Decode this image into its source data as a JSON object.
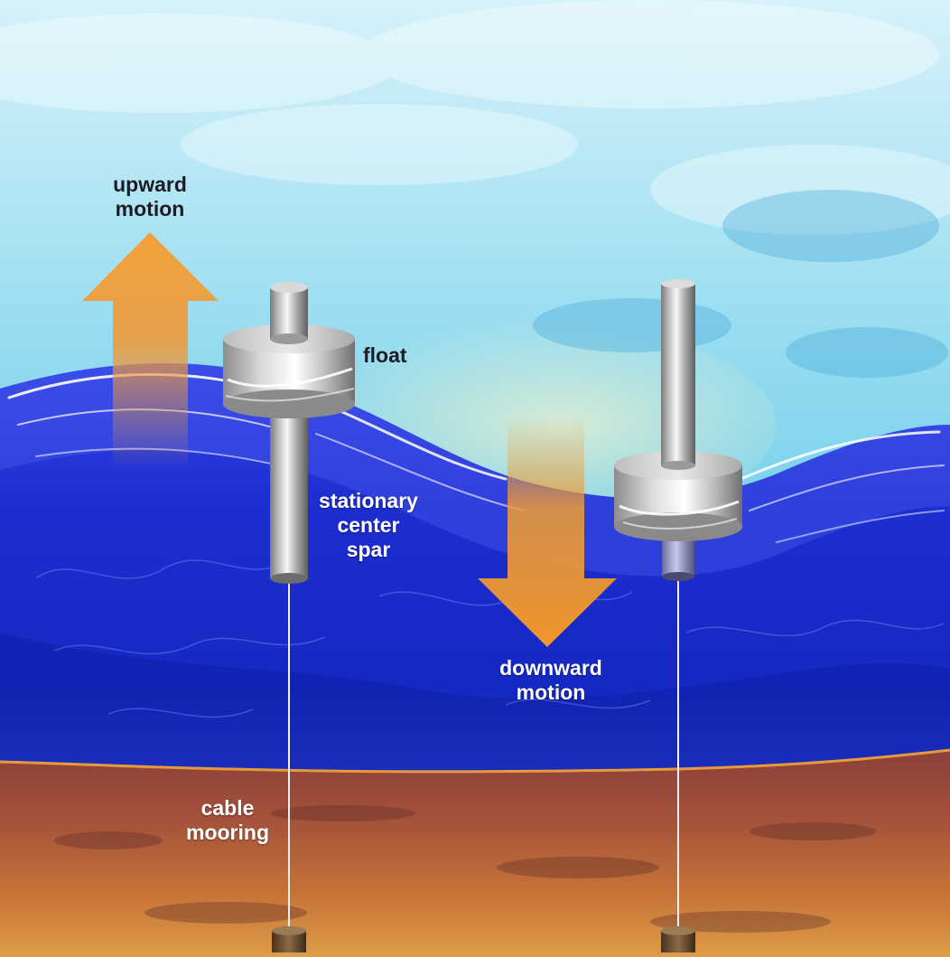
{
  "labels": {
    "upward_motion": {
      "line1": "upward",
      "line2": "motion"
    },
    "float": "float",
    "spar": {
      "line1": "stationary",
      "line2": "center",
      "line3": "spar"
    },
    "downward_motion": {
      "line1": "downward",
      "line2": "motion"
    },
    "cable_mooring": {
      "line1": "cable",
      "line2": "mooring"
    }
  },
  "colors": {
    "sky_top": "#cfeff8",
    "sky_mid": "#79d2ec",
    "sky_low": "#45b9e4",
    "ocean_surface": "#1f2fd6",
    "ocean_deep": "#0d22b8",
    "seafloor_top": "#9a4c38",
    "seafloor_bottom": "#d98a3e",
    "arrow": "#f29a2e",
    "metal_light": "#f4f4f4",
    "metal_dark": "#6e6e6e",
    "label_dark": "#1c1c24",
    "label_light": "#ffffff"
  }
}
